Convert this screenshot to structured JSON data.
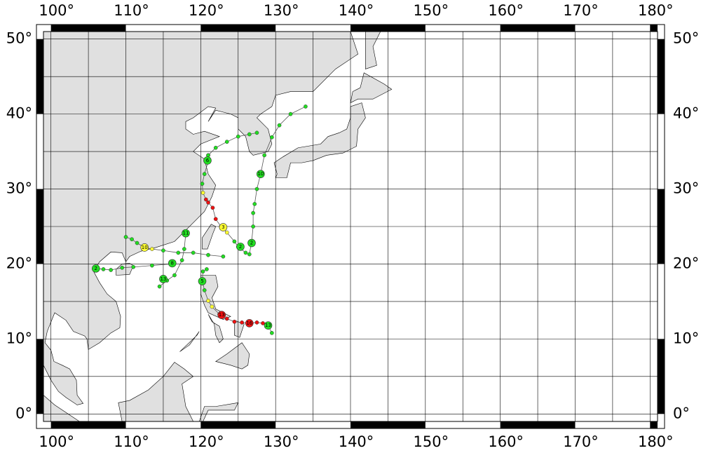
{
  "map": {
    "xlim": [
      99,
      181
    ],
    "ylim": [
      -1,
      51
    ],
    "xticks": [
      {
        "value": 100,
        "label": "100°"
      },
      {
        "value": 110,
        "label": "110°"
      },
      {
        "value": 120,
        "label": "120°"
      },
      {
        "value": 130,
        "label": "130°"
      },
      {
        "value": 140,
        "label": "140°"
      },
      {
        "value": 150,
        "label": "150°"
      },
      {
        "value": 160,
        "label": "160°"
      },
      {
        "value": 170,
        "label": "170°"
      },
      {
        "value": 180,
        "label": "180°"
      }
    ],
    "yticks": [
      {
        "value": 0,
        "label": "0°"
      },
      {
        "value": 10,
        "label": "10°"
      },
      {
        "value": 20,
        "label": "20°"
      },
      {
        "value": 30,
        "label": "30°"
      },
      {
        "value": 40,
        "label": "40°"
      },
      {
        "value": 50,
        "label": "50°"
      }
    ],
    "xgrid": [
      100,
      105,
      110,
      115,
      120,
      125,
      130,
      135,
      140,
      145,
      150,
      155,
      160,
      165,
      170,
      175,
      180
    ],
    "ygrid": [
      0,
      5,
      10,
      15,
      20,
      25,
      30,
      35,
      40,
      45,
      50
    ],
    "land_color": "#e0e0e0",
    "tracks": [
      {
        "lon": [
          129.5,
          129,
          128.3,
          127.5,
          126.5,
          125.5,
          124.5,
          123.5,
          122.5,
          121.5,
          121,
          120.5,
          120.2,
          120.3,
          120.8
        ],
        "lat": [
          10.8,
          11.8,
          12.1,
          12.2,
          12.1,
          12.2,
          12.3,
          12.7,
          13.3,
          14.3,
          15.1,
          16.5,
          17.8,
          19,
          19.3
        ],
        "colors": [
          "#22dd22",
          "#22dd22",
          "#ee1111",
          "#ee1111",
          "#ee1111",
          "#ee1111",
          "#ee1111",
          "#ee1111",
          "#ee1111",
          "#ffff33",
          "#ffff33",
          "#22dd22",
          "#22dd22",
          "#22dd22",
          "#22dd22"
        ]
      },
      {
        "lon": [
          126,
          125,
          124.5,
          123.5,
          122.7,
          122,
          121.6,
          121,
          120.7,
          120.3,
          120.2,
          120.5,
          121,
          121
        ],
        "lat": [
          21.5,
          22.3,
          23,
          24.2,
          25,
          26,
          27.5,
          28.2,
          28.6,
          29.5,
          30.7,
          32,
          33.7,
          34.5
        ],
        "colors": [
          "#22dd22",
          "#22dd22",
          "#22dd22",
          "#ffff33",
          "#ffff33",
          "#ee1111",
          "#ee1111",
          "#ee1111",
          "#ee1111",
          "#ffff33",
          "#22dd22",
          "#22dd22",
          "#22dd22",
          "#22dd22"
        ]
      },
      {
        "lon": [
          123,
          121,
          119,
          117,
          115,
          113.5,
          112.5,
          111.5,
          110.8,
          110
        ],
        "lat": [
          21,
          21.2,
          21.5,
          21.5,
          21.8,
          22,
          22.2,
          22.8,
          23.3,
          23.6
        ],
        "colors": [
          "#22dd22",
          "#22dd22",
          "#22dd22",
          "#22dd22",
          "#22dd22",
          "#ffff33",
          "#ffff33",
          "#22dd22",
          "#22dd22",
          "#22dd22"
        ]
      },
      {
        "lon": [
          116,
          113.5,
          111,
          109.5,
          108,
          107,
          106
        ],
        "lat": [
          20,
          19.8,
          19.6,
          19.5,
          19.2,
          19.3,
          19.4
        ],
        "colors": [
          "#22dd22",
          "#22dd22",
          "#22dd22",
          "#22dd22",
          "#22dd22",
          "#22dd22",
          "#22dd22"
        ]
      },
      {
        "lon": [
          126.5,
          126.8,
          127,
          127,
          127.2,
          127.5,
          128,
          128.5,
          129.5,
          130.5,
          132,
          134
        ],
        "lat": [
          21.3,
          23,
          25,
          26.8,
          28,
          30,
          32,
          34.5,
          36.9,
          38.5,
          40,
          41
        ],
        "colors": [
          "#22dd22",
          "#22dd22",
          "#22dd22",
          "#22dd22",
          "#22dd22",
          "#22dd22",
          "#22dd22",
          "#22dd22",
          "#22dd22",
          "#22dd22",
          "#22dd22",
          "#22dd22"
        ]
      },
      {
        "lon": [
          121,
          122,
          123.5,
          125,
          126.5,
          127.5
        ],
        "lat": [
          34.5,
          35.5,
          36.3,
          37,
          37.3,
          37.5
        ],
        "colors": [
          "#22dd22",
          "#22dd22",
          "#22dd22",
          "#22dd22",
          "#22dd22",
          "#22dd22"
        ]
      },
      {
        "lon": [
          118,
          117.8,
          117.5,
          116.5,
          115.5,
          114.5
        ],
        "lat": [
          24,
          22,
          20.5,
          18.5,
          17.8,
          17
        ],
        "colors": [
          "#22dd22",
          "#22dd22",
          "#22dd22",
          "#22dd22",
          "#22dd22",
          "#22dd22"
        ]
      }
    ],
    "labeled_points": [
      {
        "lon": 129,
        "lat": 11.8,
        "color": "#22dd22",
        "label": "13"
      },
      {
        "lon": 126.5,
        "lat": 12.1,
        "color": "#ee1111",
        "label": "16"
      },
      {
        "lon": 122.8,
        "lat": 13.2,
        "color": "#ee1111",
        "label": "13"
      },
      {
        "lon": 123,
        "lat": 24.9,
        "color": "#ffff33",
        "label": "3"
      },
      {
        "lon": 126.8,
        "lat": 22.8,
        "color": "#22dd22",
        "label": "2"
      },
      {
        "lon": 125.3,
        "lat": 22.3,
        "color": "#22dd22",
        "label": "2"
      },
      {
        "lon": 128,
        "lat": 32,
        "color": "#22dd22",
        "label": "10"
      },
      {
        "lon": 120.9,
        "lat": 33.8,
        "color": "#22dd22",
        "label": "6"
      },
      {
        "lon": 118,
        "lat": 24.1,
        "color": "#22dd22",
        "label": "11"
      },
      {
        "lon": 112.5,
        "lat": 22.2,
        "color": "#ffff33",
        "label": "10"
      },
      {
        "lon": 116.2,
        "lat": 20.1,
        "color": "#22dd22",
        "label": "8"
      },
      {
        "lon": 115,
        "lat": 18,
        "color": "#22dd22",
        "label": "13"
      },
      {
        "lon": 120.2,
        "lat": 17.7,
        "color": "#22dd22",
        "label": "5"
      },
      {
        "lon": 106,
        "lat": 19.4,
        "color": "#22dd22",
        "label": "2"
      }
    ]
  }
}
